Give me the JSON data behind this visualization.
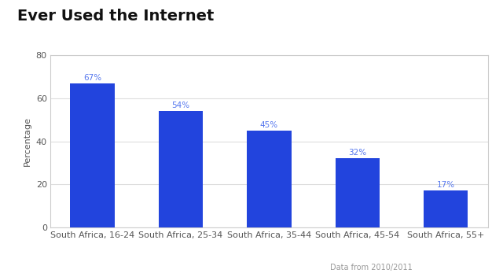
{
  "title": "Ever Used the Internet",
  "categories": [
    "South Africa, 16-24",
    "South Africa, 25-34",
    "South Africa, 35-44",
    "South Africa, 45-54",
    "South Africa, 55+"
  ],
  "values": [
    67,
    54,
    45,
    32,
    17
  ],
  "bar_color": "#2244dd",
  "ylabel": "Percentage",
  "ylim": [
    0,
    80
  ],
  "yticks": [
    0,
    20,
    40,
    60,
    80
  ],
  "label_color": "#5577ee",
  "title_fontsize": 14,
  "axis_label_fontsize": 8,
  "tick_fontsize": 8,
  "annotation_fontsize": 7.5,
  "source_text": "Data from 2010/2011",
  "background_color": "#ffffff",
  "plot_bg_color": "#ffffff",
  "grid_color": "#dddddd",
  "border_color": "#cccccc"
}
